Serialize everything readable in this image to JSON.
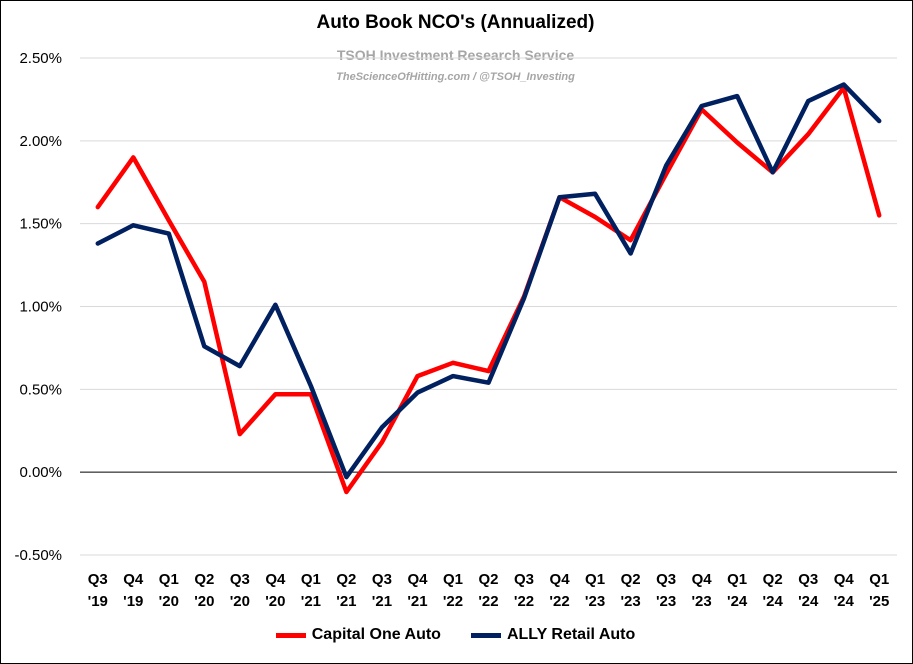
{
  "chart_data": {
    "type": "line",
    "title": "Auto Book NCO's (Annualized)",
    "subtitle": "TSOH Investment Research Service",
    "credit": "TheScienceOfHitting.com / @TSOH_Investing",
    "categories": [
      [
        "Q3",
        "'19"
      ],
      [
        "Q4",
        "'19"
      ],
      [
        "Q1",
        "'20"
      ],
      [
        "Q2",
        "'20"
      ],
      [
        "Q3",
        "'20"
      ],
      [
        "Q4",
        "'20"
      ],
      [
        "Q1",
        "'21"
      ],
      [
        "Q2",
        "'21"
      ],
      [
        "Q3",
        "'21"
      ],
      [
        "Q4",
        "'21"
      ],
      [
        "Q1",
        "'22"
      ],
      [
        "Q2",
        "'22"
      ],
      [
        "Q3",
        "'22"
      ],
      [
        "Q4",
        "'22"
      ],
      [
        "Q1",
        "'23"
      ],
      [
        "Q2",
        "'23"
      ],
      [
        "Q3",
        "'23"
      ],
      [
        "Q4",
        "'23"
      ],
      [
        "Q1",
        "'24"
      ],
      [
        "Q2",
        "'24"
      ],
      [
        "Q3",
        "'24"
      ],
      [
        "Q4",
        "'24"
      ],
      [
        "Q1",
        "'25"
      ]
    ],
    "series": [
      {
        "name": "Capital One Auto",
        "color": "#ff0000",
        "values": [
          1.6,
          1.9,
          1.52,
          1.15,
          0.23,
          0.47,
          0.47,
          -0.12,
          0.18,
          0.58,
          0.66,
          0.61,
          1.06,
          1.66,
          1.54,
          1.4,
          1.8,
          2.19,
          1.99,
          1.81,
          2.04,
          2.32,
          1.55
        ]
      },
      {
        "name": "ALLY Retail Auto",
        "color": "#002060",
        "values": [
          1.38,
          1.49,
          1.44,
          0.76,
          0.64,
          1.01,
          0.52,
          -0.03,
          0.27,
          0.48,
          0.58,
          0.54,
          1.05,
          1.66,
          1.68,
          1.32,
          1.85,
          2.21,
          2.27,
          1.81,
          2.24,
          2.34,
          2.12
        ]
      }
    ],
    "y_ticks": [
      "2.50%",
      "2.00%",
      "1.50%",
      "1.00%",
      "0.50%",
      "0.00%",
      "-0.50%"
    ],
    "ylim": [
      -0.5,
      2.5
    ],
    "grid": true,
    "legend_position": "bottom"
  }
}
